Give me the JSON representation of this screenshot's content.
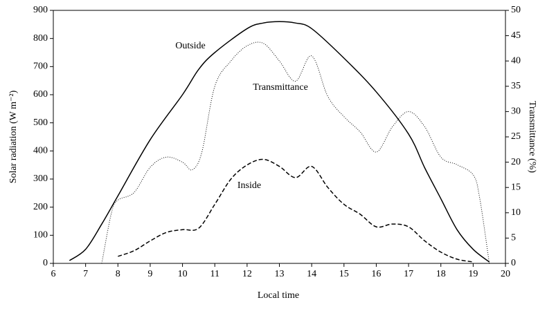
{
  "chart_data": {
    "type": "line",
    "xlabel": "Local time",
    "ylabel": "Solar radiation (W m⁻²)",
    "y2label": "Transmittance (%)",
    "xlim": [
      6,
      20
    ],
    "xticks": [
      6,
      7,
      8,
      9,
      10,
      11,
      12,
      13,
      14,
      15,
      16,
      17,
      18,
      19,
      20
    ],
    "ylim": [
      0,
      900
    ],
    "yticks": [
      0,
      100,
      200,
      300,
      400,
      500,
      600,
      700,
      800,
      900
    ],
    "y2lim": [
      0,
      50
    ],
    "y2ticks": [
      0,
      5,
      10,
      15,
      20,
      25,
      30,
      35,
      40,
      45,
      50
    ],
    "series": [
      {
        "name": "Outside",
        "color": "#000000",
        "style": "solid",
        "x": [
          6.5,
          7,
          7.5,
          8,
          9,
          10,
          10.5,
          11,
          12,
          12.5,
          13,
          13.5,
          14,
          15,
          16,
          17,
          17.5,
          18,
          18.5,
          19,
          19.5
        ],
        "values": [
          10,
          50,
          140,
          240,
          440,
          600,
          690,
          750,
          835,
          855,
          860,
          855,
          835,
          730,
          610,
          460,
          340,
          230,
          120,
          50,
          5
        ]
      },
      {
        "name": "Transmittance",
        "color": "#000000",
        "style": "dotted",
        "axis": "y2",
        "x": [
          7.5,
          7.8,
          8,
          8.5,
          9,
          9.5,
          10,
          10.3,
          10.6,
          11,
          11.5,
          12,
          12.5,
          13,
          13.5,
          14,
          14.5,
          15,
          15.5,
          16,
          16.5,
          17,
          17.5,
          18,
          18.5,
          19,
          19.2,
          19.5
        ],
        "values": [
          0,
          10,
          12.5,
          14,
          19,
          21,
          20,
          18.5,
          22,
          35,
          40,
          43,
          43.5,
          40,
          36,
          41,
          33,
          29,
          26,
          22,
          27,
          30,
          27,
          21,
          19.5,
          17.5,
          13,
          0
        ]
      },
      {
        "name": "Inside",
        "color": "#000000",
        "style": "dashed",
        "x": [
          8,
          8.5,
          9,
          9.5,
          10,
          10.5,
          11,
          11.5,
          12,
          12.5,
          13,
          13.5,
          14,
          14.5,
          15,
          15.5,
          16,
          16.5,
          17,
          17.5,
          18,
          18.5,
          19
        ],
        "values": [
          25,
          45,
          80,
          110,
          120,
          125,
          210,
          300,
          350,
          370,
          345,
          305,
          345,
          270,
          210,
          175,
          130,
          140,
          130,
          80,
          40,
          15,
          5
        ]
      }
    ]
  }
}
